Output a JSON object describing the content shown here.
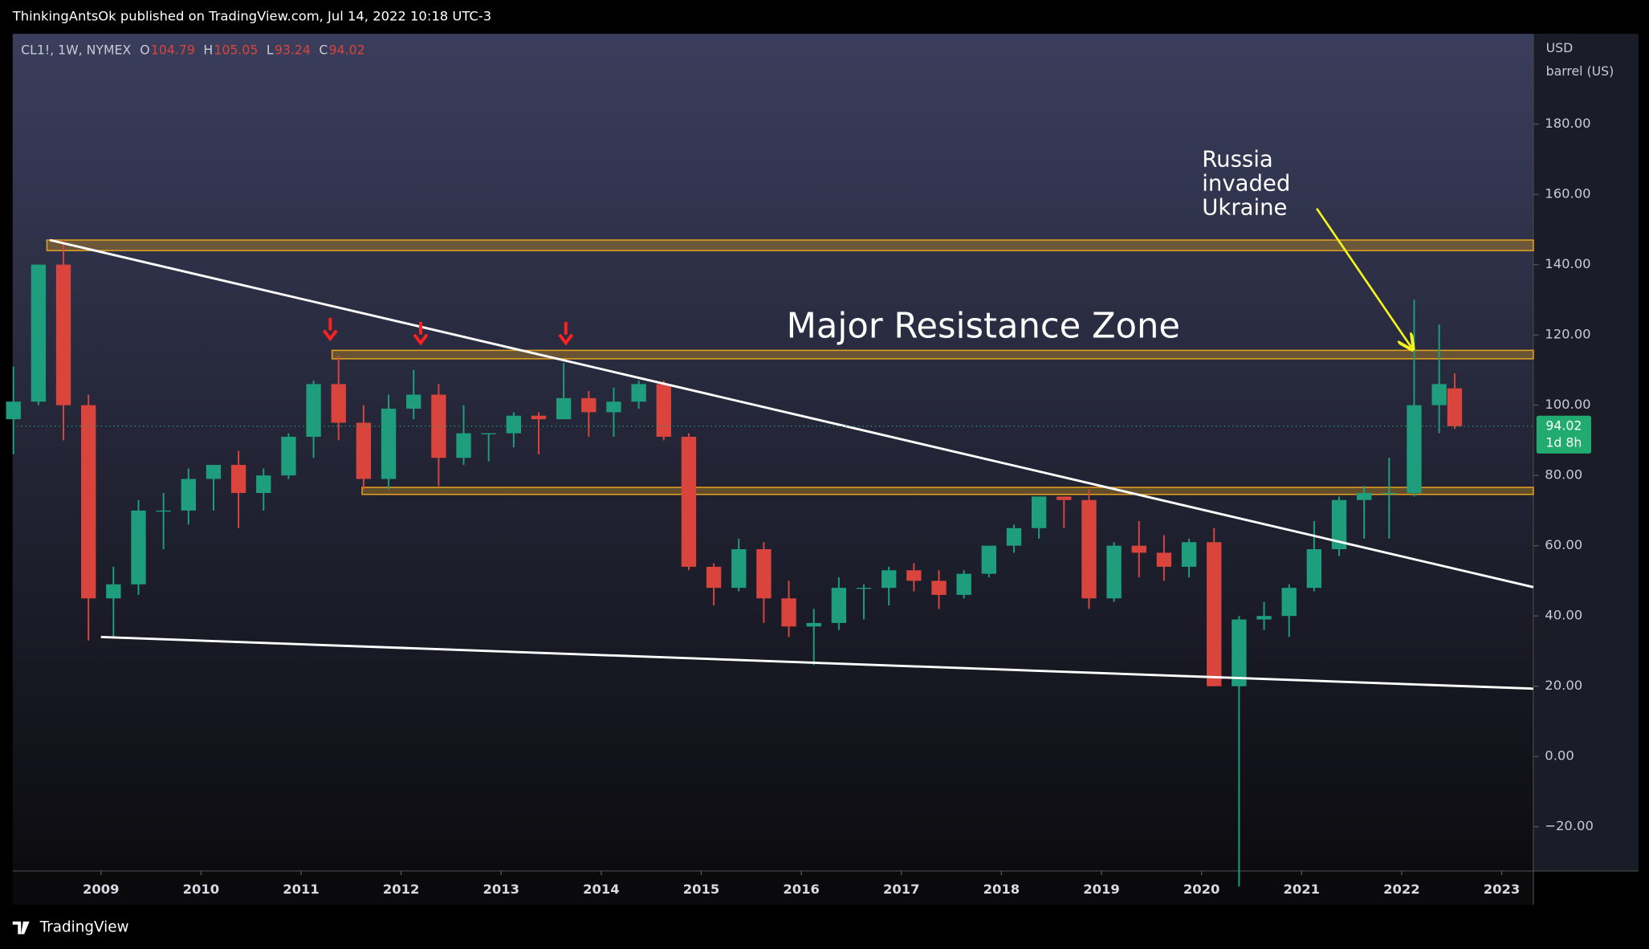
{
  "header": {
    "publisher": "ThinkingAntsOk published on TradingView.com, Jul 14, 2022 10:18 UTC-3",
    "brand": "TradingView"
  },
  "chart_data": {
    "type": "candlestick",
    "symbol": "CL1!, 1W, NYMEX",
    "ohlc": [
      {
        "label": "O",
        "value": 104.79
      },
      {
        "label": "H",
        "value": 105.05
      },
      {
        "label": "L",
        "value": 93.24
      },
      {
        "label": "C",
        "value": 94.02
      }
    ],
    "price_unit": [
      "USD",
      "barrel (US)"
    ],
    "countdown": "1d 8h",
    "up_color": "#1f9e7e",
    "down_color": "#d9453d",
    "x": [
      2008.125,
      2008.375,
      2008.625,
      2008.875,
      2009.125,
      2009.375,
      2009.625,
      2009.875,
      2010.125,
      2010.375,
      2010.625,
      2010.875,
      2011.125,
      2011.375,
      2011.625,
      2011.875,
      2012.125,
      2012.375,
      2012.625,
      2012.875,
      2013.125,
      2013.375,
      2013.625,
      2013.875,
      2014.125,
      2014.375,
      2014.625,
      2014.875,
      2015.125,
      2015.375,
      2015.625,
      2015.875,
      2016.125,
      2016.375,
      2016.625,
      2016.875,
      2017.125,
      2017.375,
      2017.625,
      2017.875,
      2018.125,
      2018.375,
      2018.625,
      2018.875,
      2019.125,
      2019.375,
      2019.625,
      2019.875,
      2020.125,
      2020.375,
      2020.625,
      2020.875,
      2021.125,
      2021.375,
      2021.625,
      2021.875,
      2022.125,
      2022.375,
      2022.53
    ],
    "open": [
      96,
      101,
      140,
      100,
      45,
      49,
      70,
      70,
      79,
      83,
      75,
      80,
      91,
      106,
      95,
      79,
      99,
      103,
      85,
      92,
      92,
      97,
      96,
      102,
      98,
      101,
      106,
      91,
      54,
      48,
      59,
      45,
      37,
      38,
      48,
      48,
      53,
      50,
      46,
      52,
      60,
      65,
      74,
      73,
      45,
      60,
      58,
      54,
      61,
      20,
      39,
      40,
      48,
      59,
      73,
      75,
      75,
      100,
      104.79
    ],
    "high": [
      111,
      140,
      147,
      103,
      54,
      73,
      75,
      82,
      83,
      87,
      82,
      92,
      107,
      114,
      100,
      103,
      110,
      106,
      100,
      92,
      98,
      98,
      112,
      104,
      105,
      107,
      107,
      92,
      55,
      62,
      61,
      50,
      42,
      51,
      49,
      54,
      55,
      53,
      53,
      60,
      66,
      73,
      74,
      76,
      61,
      67,
      63,
      62,
      65,
      40,
      44,
      49,
      67,
      74,
      77,
      85,
      130,
      123,
      109
    ],
    "low": [
      86,
      100,
      90,
      33,
      34,
      46,
      59,
      66,
      70,
      65,
      70,
      79,
      85,
      90,
      76,
      76,
      96,
      77,
      83,
      84,
      88,
      86,
      96,
      91,
      91,
      99,
      90,
      53,
      43,
      47,
      38,
      34,
      26,
      36,
      39,
      43,
      47,
      42,
      45,
      51,
      58,
      62,
      65,
      42,
      44,
      51,
      50,
      51,
      20,
      -37,
      36,
      34,
      47,
      57,
      62,
      62,
      74,
      92,
      93.24
    ],
    "close": [
      101,
      140,
      100,
      45,
      49,
      70,
      70,
      79,
      83,
      75,
      80,
      91,
      106,
      95,
      79,
      99,
      103,
      85,
      92,
      92,
      97,
      96,
      102,
      98,
      101,
      106,
      91,
      54,
      48,
      59,
      45,
      37,
      38,
      48,
      48,
      53,
      50,
      46,
      52,
      60,
      65,
      74,
      73,
      45,
      60,
      58,
      54,
      61,
      20,
      39,
      40,
      48,
      59,
      73,
      75,
      75,
      100,
      106,
      94.02
    ],
    "xlim": [
      2008.117,
      2023.316
    ],
    "ylim": [
      -32.6,
      205.7
    ],
    "xticks": [
      2009,
      2010,
      2011,
      2012,
      2013,
      2014,
      2015,
      2016,
      2017,
      2018,
      2019,
      2020,
      2021,
      2022,
      2023
    ],
    "yticks": [
      {
        "value": 180,
        "label": "180.00"
      },
      {
        "value": 160,
        "label": "160.00"
      },
      {
        "value": 140,
        "label": "140.00"
      },
      {
        "value": 120,
        "label": "120.00"
      },
      {
        "value": 100,
        "label": "100.00"
      },
      {
        "value": 80,
        "label": "80.00"
      },
      {
        "value": 60,
        "label": "60.00"
      },
      {
        "value": 40,
        "label": "40.00"
      },
      {
        "value": 20,
        "label": "20.00"
      },
      {
        "value": 0,
        "label": "0.00"
      },
      {
        "value": -20,
        "label": "−20.00"
      }
    ],
    "zones": [
      {
        "start": 2008.46,
        "low": 144,
        "high": 147
      },
      {
        "start": 2011.31,
        "low": 113.2,
        "high": 115.6
      },
      {
        "start": 2011.61,
        "low": 74.6,
        "high": 76.6
      }
    ],
    "zone_color": "#e0a020",
    "trendlines": [
      {
        "x": [
          2008.49,
          2023.316
        ],
        "y": [
          147,
          48.2
        ]
      },
      {
        "x": [
          2009.0,
          2023.316
        ],
        "y": [
          34,
          19.3
        ]
      }
    ],
    "annotations": [
      {
        "text": "Major Resistance Zone"
      },
      {
        "lines": [
          "Russia",
          "invaded",
          "Ukraine"
        ]
      }
    ]
  }
}
